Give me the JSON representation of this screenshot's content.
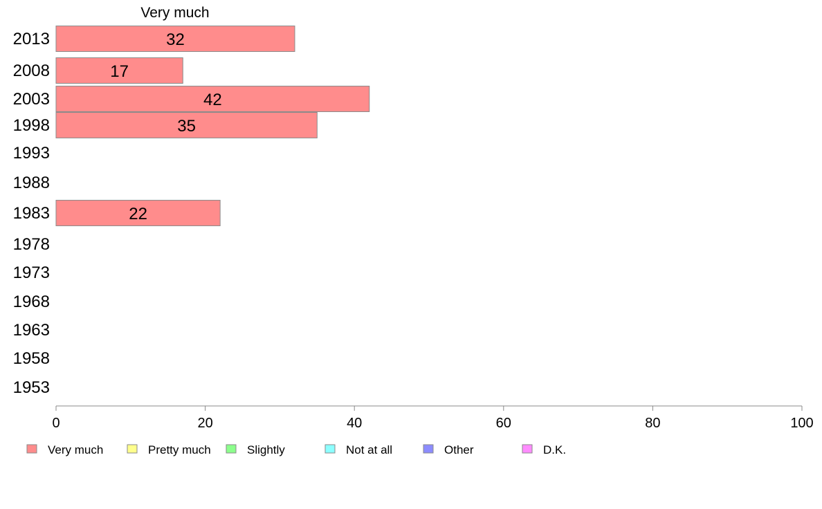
{
  "chart_data": {
    "type": "bar",
    "orientation": "horizontal",
    "categories": [
      "2013",
      "2008",
      "2003",
      "1998",
      "1993",
      "1988",
      "1983",
      "1978",
      "1973",
      "1968",
      "1963",
      "1958",
      "1953"
    ],
    "series": [
      {
        "name": "Very much",
        "color": "#ff8c8c",
        "values": [
          32,
          17,
          42,
          35,
          null,
          null,
          22,
          null,
          null,
          null,
          null,
          null,
          null
        ]
      }
    ],
    "data_labels": [
      "32",
      "17",
      "42",
      "35",
      "",
      "",
      "22",
      "",
      "",
      "",
      "",
      "",
      ""
    ],
    "title": "Very much",
    "xlim": [
      0,
      100
    ],
    "xticks": [
      0,
      20,
      40,
      60,
      80,
      100
    ],
    "grid": false,
    "legend": {
      "placement": "bottom-left",
      "entries": [
        {
          "label": "Very much",
          "color": "#ff8c8c"
        },
        {
          "label": "Pretty much",
          "color": "#ffff8c"
        },
        {
          "label": "Slightly",
          "color": "#8cff8c"
        },
        {
          "label": "Not at all",
          "color": "#8cffff"
        },
        {
          "label": "Other",
          "color": "#8c8cff"
        },
        {
          "label": "D.K.",
          "color": "#ff8cff"
        }
      ]
    }
  }
}
